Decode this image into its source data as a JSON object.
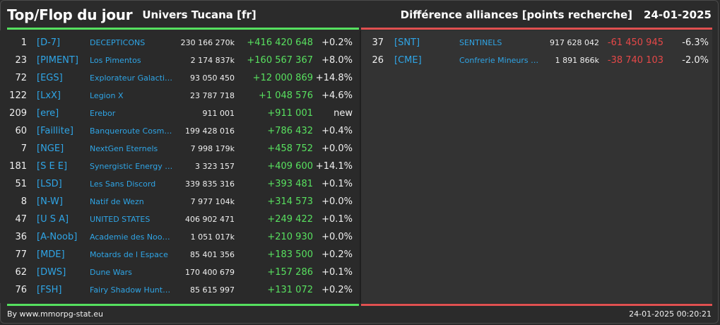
{
  "header": {
    "title": "Top/Flop du jour",
    "universe": "Univers Tucana [fr]",
    "right_title": "Différence alliances [points recherche]",
    "date": "24-01-2025"
  },
  "top": [
    {
      "rank": "1",
      "tag": "[D-7]",
      "name": "DECEPTICONS",
      "points": "230 166 270k",
      "diff": "+416 420 648",
      "pct": "+0.2%"
    },
    {
      "rank": "23",
      "tag": "[PIMENT]",
      "name": "Los Pimentos",
      "points": "2 174 837k",
      "diff": "+160 567 367",
      "pct": "+8.0%"
    },
    {
      "rank": "72",
      "tag": "[EGS]",
      "name": "Explorateur Galacti…",
      "points": "93 050 450",
      "diff": "+12 000 869",
      "pct": "+14.8%"
    },
    {
      "rank": "122",
      "tag": "[LxX]",
      "name": "Legion X",
      "points": "23 787 718",
      "diff": "+1 048 576",
      "pct": "+4.6%"
    },
    {
      "rank": "209",
      "tag": "[ere]",
      "name": "Erebor",
      "points": "911 001",
      "diff": "+911 001",
      "pct": "new"
    },
    {
      "rank": "60",
      "tag": "[Faillite]",
      "name": "Banqueroute Cosm…",
      "points": "199 428 016",
      "diff": "+786 432",
      "pct": "+0.4%"
    },
    {
      "rank": "7",
      "tag": "[NGE]",
      "name": "NextGen Eternels",
      "points": "7 998 179k",
      "diff": "+458 752",
      "pct": "+0.0%"
    },
    {
      "rank": "181",
      "tag": "[S E E]",
      "name": "Synergistic Energy …",
      "points": "3 323 157",
      "diff": "+409 600",
      "pct": "+14.1%"
    },
    {
      "rank": "51",
      "tag": "[LSD]",
      "name": "Les Sans Discord",
      "points": "339 835 316",
      "diff": "+393 481",
      "pct": "+0.1%"
    },
    {
      "rank": "8",
      "tag": "[N-W]",
      "name": "Natif de Wezn",
      "points": "7 977 104k",
      "diff": "+314 573",
      "pct": "+0.0%"
    },
    {
      "rank": "47",
      "tag": "[U S A]",
      "name": "UNITED STATES",
      "points": "406 902 471",
      "diff": "+249 422",
      "pct": "+0.1%"
    },
    {
      "rank": "36",
      "tag": "[A-Noob]",
      "name": "Academie des Noob…",
      "points": "1 051 017k",
      "diff": "+210 930",
      "pct": "+0.0%"
    },
    {
      "rank": "77",
      "tag": "[MDE]",
      "name": "Motards de l Espace",
      "points": "85 401 356",
      "diff": "+183 500",
      "pct": "+0.2%"
    },
    {
      "rank": "62",
      "tag": "[DWS]",
      "name": "Dune Wars",
      "points": "170 400 679",
      "diff": "+157 286",
      "pct": "+0.1%"
    },
    {
      "rank": "76",
      "tag": "[FSH]",
      "name": "Fairy Shadow Hunte…",
      "points": "85 615 997",
      "diff": "+131 072",
      "pct": "+0.2%"
    }
  ],
  "flop": [
    {
      "rank": "37",
      "tag": "[SNT]",
      "name": "SENTINELS",
      "points": "917 628 042",
      "diff": "-61 450 945",
      "pct": "-6.3%"
    },
    {
      "rank": "26",
      "tag": "[CME]",
      "name": "Confrerie Mineurs …",
      "points": "1 891 866k",
      "diff": "-38 740 103",
      "pct": "-2.0%"
    }
  ],
  "footer": {
    "credit": "By www.mmorpg-stat.eu",
    "timestamp": "24-01-2025 00:20:21"
  },
  "colors": {
    "background": "#2b2b2b",
    "tag": "#2fa5e6",
    "positive": "#58e05f",
    "negative": "#e54848",
    "top_rule": "#55e05f",
    "flop_rule": "#e05050"
  }
}
